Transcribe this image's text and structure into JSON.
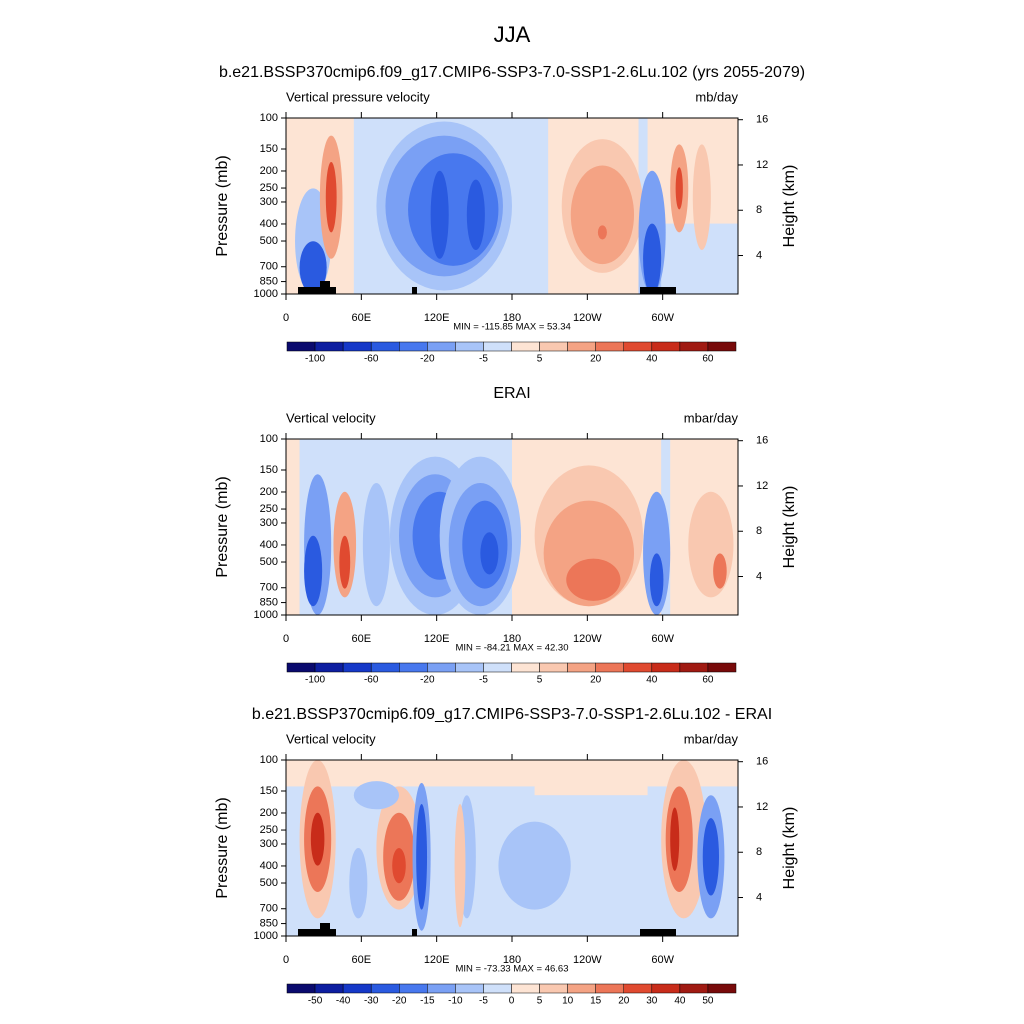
{
  "chart_data": {
    "type": "contour",
    "title": "JJA",
    "panels": [
      {
        "title": "b.e21.BSSP370cmip6.f09_g17.CMIP6-SSP3-7.0-SSP1-2.6Lu.102 (yrs 2055-2079)",
        "left_label": "Vertical pressure velocity",
        "right_label": "mb/day",
        "ylabel": "Pressure (mb)",
        "y2label": "Height (km)",
        "log_y": true,
        "ylim": [
          100,
          1000
        ],
        "yticks": [
          100,
          150,
          200,
          250,
          300,
          400,
          500,
          700,
          850,
          1000
        ],
        "y2lim": [
          0.6,
          16.15
        ],
        "y2ticks": [
          4,
          8,
          12,
          16
        ],
        "xlim": [
          0,
          360
        ],
        "xticks": [
          0,
          {
            "value": 60,
            "label": "60E"
          },
          {
            "value": 120,
            "label": "120E"
          },
          180,
          {
            "value": 240,
            "label": "120W"
          },
          {
            "value": 300,
            "label": "60W"
          }
        ],
        "stats": "MIN = -115.85  MAX =  53.34",
        "colors": [
          "#0a0a6e",
          "#0d1ea0",
          "#1538c8",
          "#2a5ae0",
          "#4878ee",
          "#7aa0f4",
          "#a8c4f8",
          "#cfe0fa",
          "#fde4d4",
          "#f9c8b0",
          "#f4a384",
          "#ec7658",
          "#e04a30",
          "#c82c1a",
          "#a01a12",
          "#780a0a"
        ],
        "levels": [
          -100,
          null,
          -60,
          null,
          -20,
          null,
          -5,
          null,
          5,
          null,
          20,
          null,
          40,
          null,
          60
        ]
      },
      {
        "title": "ERAI",
        "left_label": "Vertical velocity",
        "right_label": "mbar/day",
        "ylabel": "Pressure (mb)",
        "y2label": "Height (km)",
        "log_y": true,
        "ylim": [
          100,
          1000
        ],
        "yticks": [
          100,
          150,
          200,
          250,
          300,
          400,
          500,
          700,
          850,
          1000
        ],
        "y2lim": [
          0.6,
          16.15
        ],
        "y2ticks": [
          4,
          8,
          12,
          16
        ],
        "xlim": [
          0,
          360
        ],
        "xticks": [
          0,
          {
            "value": 60,
            "label": "60E"
          },
          {
            "value": 120,
            "label": "120E"
          },
          180,
          {
            "value": 240,
            "label": "120W"
          },
          {
            "value": 300,
            "label": "60W"
          }
        ],
        "stats": "MIN = -84.21  MAX =  42.30",
        "colors": [
          "#0a0a6e",
          "#0d1ea0",
          "#1538c8",
          "#2a5ae0",
          "#4878ee",
          "#7aa0f4",
          "#a8c4f8",
          "#cfe0fa",
          "#fde4d4",
          "#f9c8b0",
          "#f4a384",
          "#ec7658",
          "#e04a30",
          "#c82c1a",
          "#a01a12",
          "#780a0a"
        ],
        "levels": [
          -100,
          null,
          -60,
          null,
          -20,
          null,
          -5,
          null,
          5,
          null,
          20,
          null,
          40,
          null,
          60
        ]
      },
      {
        "title": "b.e21.BSSP370cmip6.f09_g17.CMIP6-SSP3-7.0-SSP1-2.6Lu.102 - ERAI",
        "left_label": "Vertical velocity",
        "right_label": "mbar/day",
        "ylabel": "Pressure (mb)",
        "y2label": "Height (km)",
        "log_y": true,
        "ylim": [
          100,
          1000
        ],
        "yticks": [
          100,
          150,
          200,
          250,
          300,
          400,
          500,
          700,
          850,
          1000
        ],
        "y2lim": [
          0.6,
          16.15
        ],
        "y2ticks": [
          4,
          8,
          12,
          16
        ],
        "xlim": [
          0,
          360
        ],
        "xticks": [
          0,
          {
            "value": 60,
            "label": "60E"
          },
          {
            "value": 120,
            "label": "120E"
          },
          180,
          {
            "value": 240,
            "label": "120W"
          },
          {
            "value": 300,
            "label": "60W"
          }
        ],
        "stats": "MIN = -73.33  MAX =  46.63",
        "colors": [
          "#0a0a6e",
          "#0d1ea0",
          "#1538c8",
          "#2a5ae0",
          "#4878ee",
          "#7aa0f4",
          "#a8c4f8",
          "#cfe0fa",
          "#fde4d4",
          "#f9c8b0",
          "#f4a384",
          "#ec7658",
          "#e04a30",
          "#c82c1a",
          "#a01a12",
          "#780a0a"
        ],
        "levels": [
          -50,
          -40,
          -30,
          -20,
          -15,
          -10,
          -5,
          0,
          5,
          10,
          15,
          20,
          30,
          40,
          50
        ]
      }
    ]
  }
}
